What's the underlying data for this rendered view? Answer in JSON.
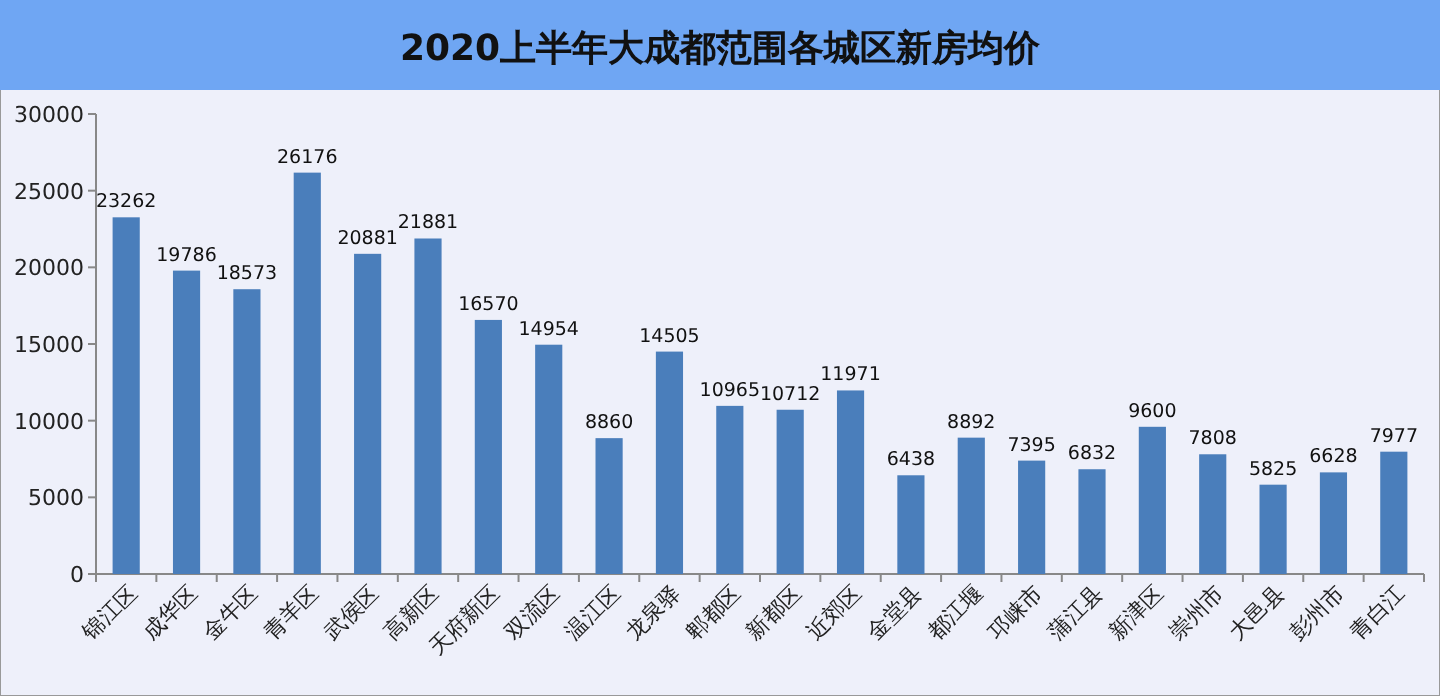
{
  "chart_data": {
    "type": "bar",
    "title": "2020上半年大成都范围各城区新房均价",
    "categories": [
      "锦江区",
      "成华区",
      "金牛区",
      "青羊区",
      "武侯区",
      "高新区",
      "天府新区",
      "双流区",
      "温江区",
      "龙泉驿",
      "郫都区",
      "新都区",
      "近郊区",
      "金堂县",
      "都江堰",
      "邛崃市",
      "蒲江县",
      "新津区",
      "崇州市",
      "大邑县",
      "彭州市",
      "青白江"
    ],
    "values": [
      23262,
      19786,
      18573,
      26176,
      20881,
      21881,
      16570,
      14954,
      8860,
      14505,
      10965,
      10712,
      11971,
      6438,
      8892,
      7395,
      6832,
      9600,
      7808,
      5825,
      6628,
      7977
    ],
    "color": "#4a7ebb",
    "ylim": [
      0,
      30000
    ],
    "yticks": [
      0,
      5000,
      10000,
      15000,
      20000,
      25000,
      30000
    ],
    "data_labels": true
  }
}
